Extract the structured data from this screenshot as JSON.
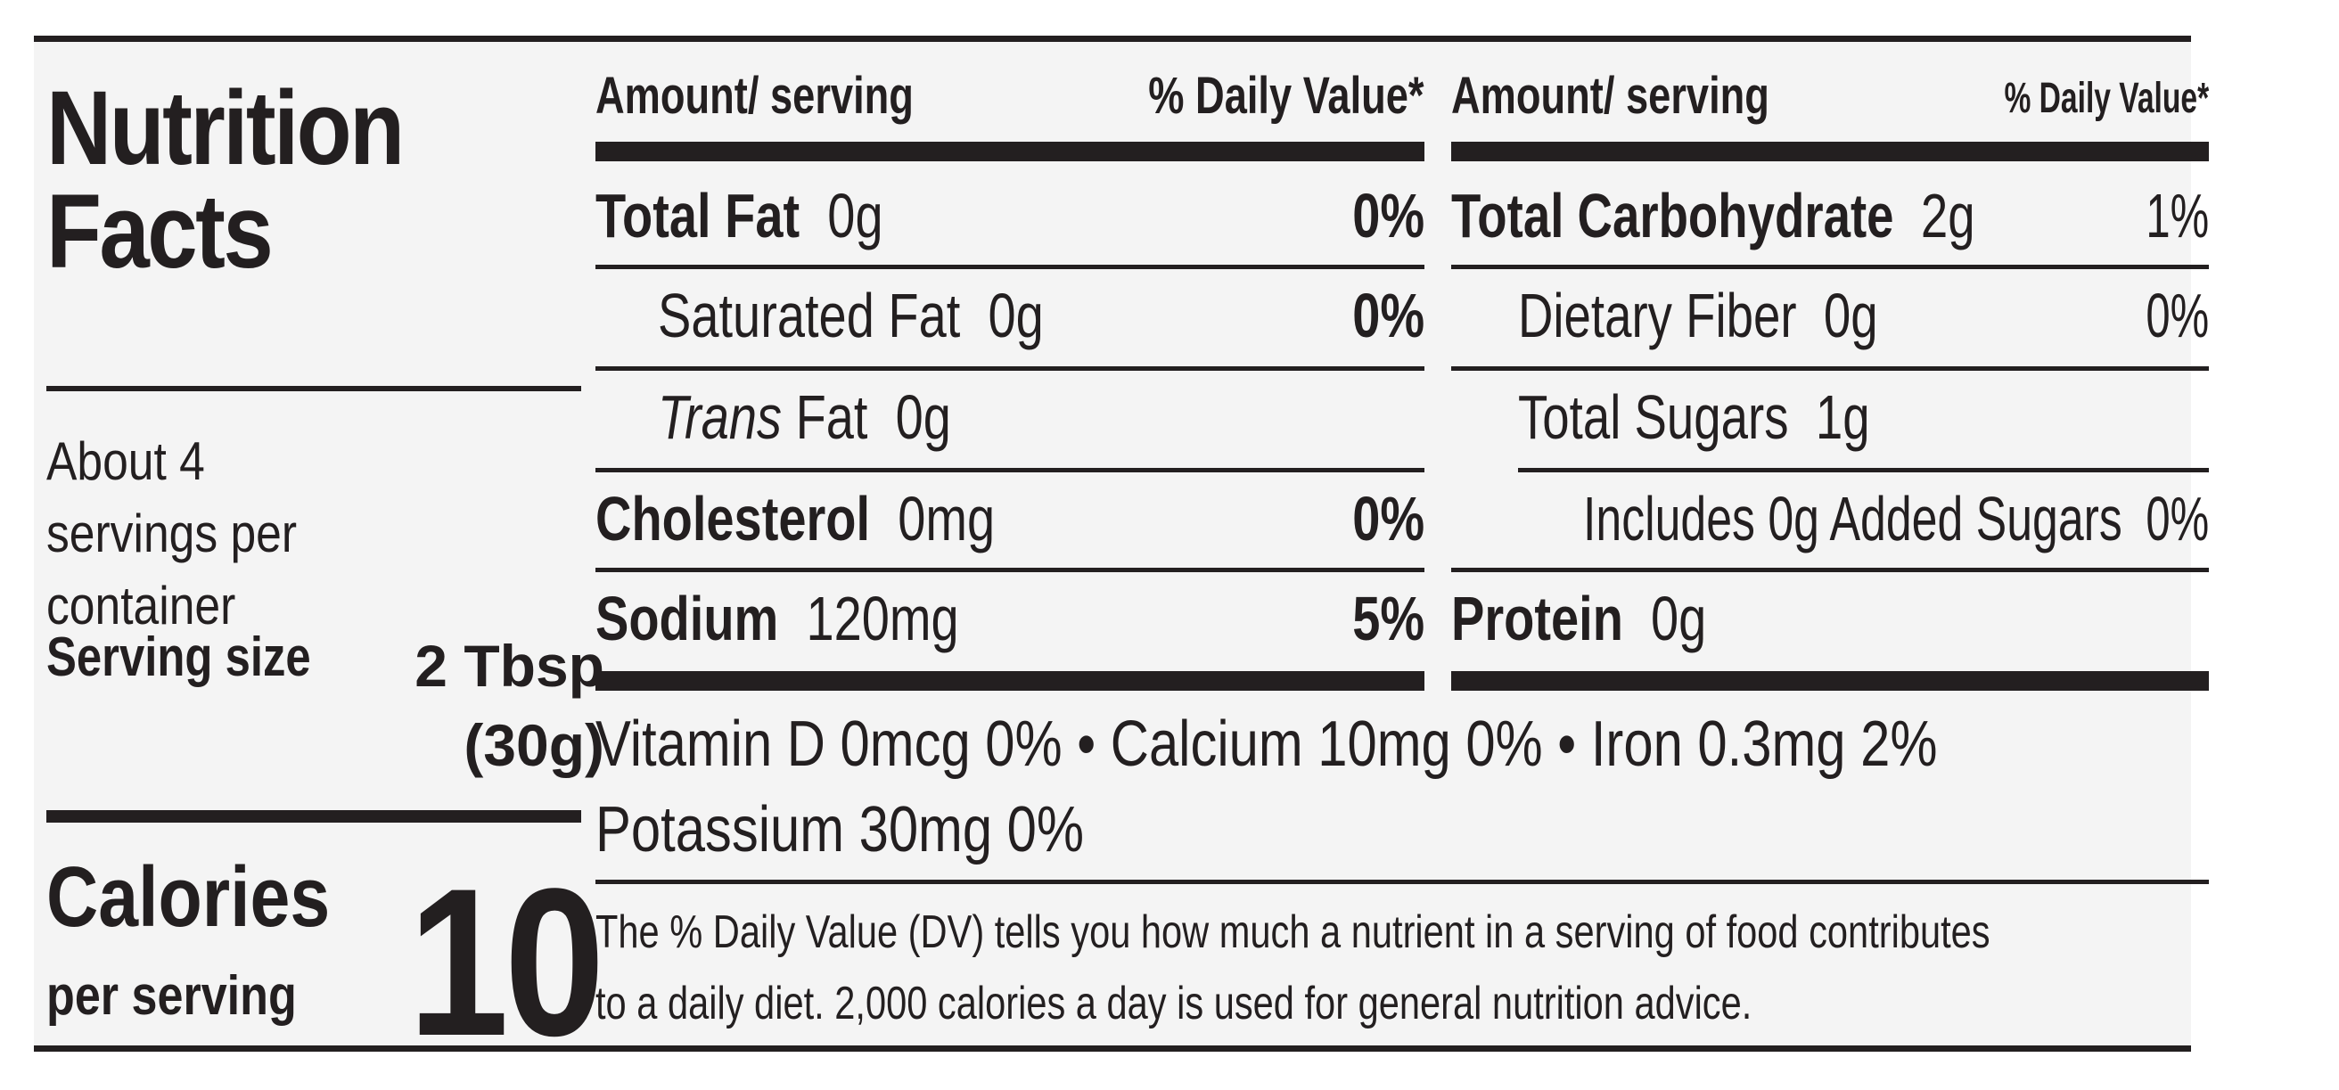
{
  "title": "Nutrition Facts",
  "servings_per_container": "About 4 servings per container",
  "serving_size_label": "Serving size",
  "serving_size_value": "2 Tbsp (30g)",
  "calories_label": "Calories",
  "calories_sublabel": "per serving",
  "calories_value": "10",
  "left_table": {
    "header_amount": "Amount/ serving",
    "header_dv": "% Daily Value*",
    "rows": [
      {
        "name": "Total Fat",
        "amount": "0g",
        "dv": "0%"
      },
      {
        "name": "Saturated Fat",
        "amount": "0g",
        "dv": "0%"
      },
      {
        "name_italic": "Trans",
        "name": "Fat",
        "amount": "0g",
        "dv": ""
      },
      {
        "name": "Cholesterol",
        "amount": "0mg",
        "dv": "0%"
      },
      {
        "name": "Sodium",
        "amount": "120mg",
        "dv": "5%"
      }
    ]
  },
  "right_table": {
    "header_amount": "Amount/ serving",
    "header_dv": "% Daily Value*",
    "rows": [
      {
        "name": "Total Carbohydrate",
        "amount": "2g",
        "dv": "1%"
      },
      {
        "name": "Dietary Fiber",
        "amount": "0g",
        "dv": "0%"
      },
      {
        "name": "Total Sugars",
        "amount": "1g",
        "dv": ""
      },
      {
        "name": "Includes 0g Added Sugars",
        "amount": "",
        "dv": "0%"
      },
      {
        "name": "Protein",
        "amount": "0g",
        "dv": ""
      }
    ]
  },
  "vitamins": {
    "line1": "Vitamin D 0mcg 0%  •  Calcium 10mg 0%  •  Iron 0.3mg 2%",
    "line2": "Potassium 30mg 0%"
  },
  "footnote": {
    "line1": "The % Daily Value (DV) tells you how much a nutrient in a serving of food contributes",
    "line2": "to a daily diet. 2,000 calories a day is used for general nutrition advice."
  }
}
